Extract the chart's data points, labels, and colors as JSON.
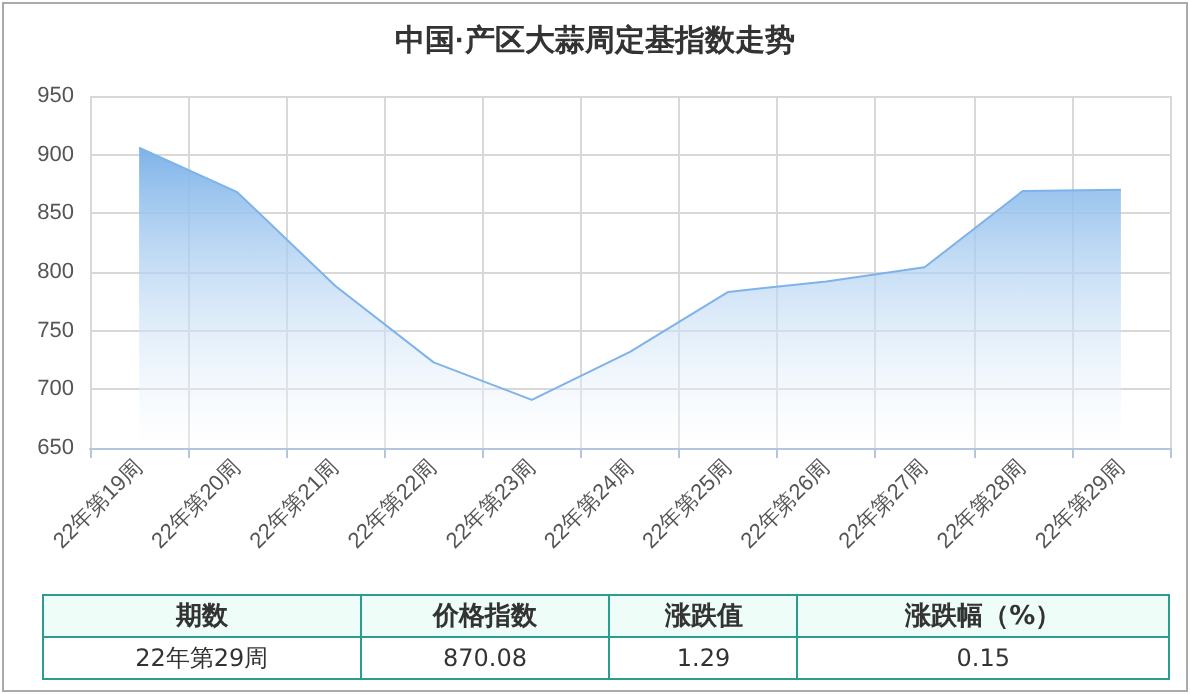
{
  "chart_data": {
    "type": "area",
    "title": "中国·产区大蒜周定基指数走势",
    "categories": [
      "22年第19周",
      "22年第20周",
      "22年第21周",
      "22年第22周",
      "22年第23周",
      "22年第24周",
      "22年第25周",
      "22年第26周",
      "22年第27周",
      "22年第28周",
      "22年第29周"
    ],
    "series": [
      {
        "color": "#7eb3e9",
        "values": [
          906,
          868,
          788,
          723,
          691,
          732,
          783,
          792,
          804,
          869,
          870.08
        ]
      }
    ],
    "ylim": [
      650,
      950
    ],
    "yticks": [
      650,
      700,
      750,
      800,
      850,
      900,
      950
    ],
    "grid": true,
    "marker": "none",
    "annotations": [
      "期数",
      "价格指数",
      "涨跌值",
      "涨跌幅（%）",
      "22年第29周",
      "870.08",
      "1.29",
      "0.15"
    ]
  }
}
